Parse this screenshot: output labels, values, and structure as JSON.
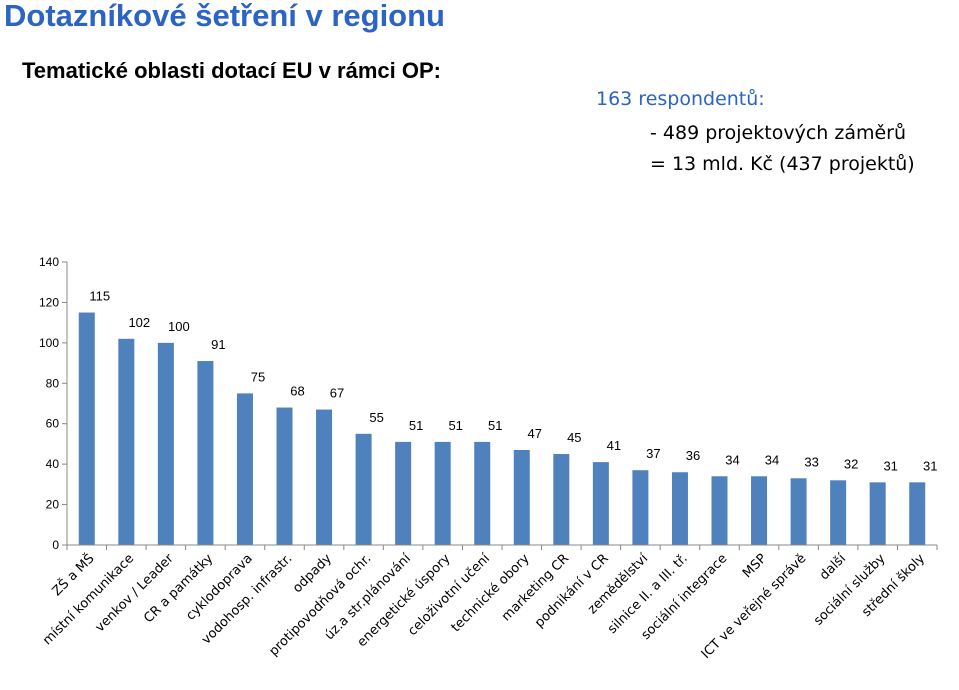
{
  "header": {
    "title": "Dotazníkové šetření v regionu",
    "subtitle": "Tematické oblasti dotací EU v rámci OP:"
  },
  "notes": {
    "line1": "163 respondentů:",
    "line2": "- 489 projektových záměrů",
    "line3": "= 13 mld. Kč (437 projektů)"
  },
  "colors": {
    "title": "#2b64c4",
    "bar": "#4f81bd",
    "axis": "#888888"
  },
  "chart_data": {
    "type": "bar",
    "categories": [
      "ZŠ a MŠ",
      "místní komunikace",
      "venkov / Leader",
      "CR a památky",
      "cyklodoprava",
      "vodohosp. infrastr.",
      "odpady",
      "protipovodňová ochr.",
      "úz.a str.plánování",
      "energetické úspory",
      "celoživotní učení",
      "technické obory",
      "marketing CR",
      "podnikání v CR",
      "zemědělství",
      "silnice II. a III. tř.",
      "sociální integrace",
      "MSP",
      "ICT ve veřejné správě",
      "další",
      "sociální služby",
      "střední školy"
    ],
    "values": [
      115,
      102,
      100,
      91,
      75,
      68,
      67,
      55,
      51,
      51,
      51,
      47,
      45,
      41,
      37,
      36,
      34,
      34,
      33,
      32,
      31,
      31
    ],
    "data_labels": [
      "115",
      "102",
      "100",
      "91",
      "75",
      "68",
      "67",
      "55",
      "51",
      "51",
      "51",
      "47",
      "45",
      "41",
      "37",
      "36",
      "34",
      "34",
      "33",
      "32",
      "31",
      "31"
    ],
    "yticks": [
      "0",
      "20",
      "40",
      "60",
      "80",
      "100",
      "120",
      "140"
    ],
    "ylim": [
      0,
      140
    ],
    "title": "",
    "xlabel": "",
    "ylabel": "",
    "legend": "none",
    "grid": false
  }
}
